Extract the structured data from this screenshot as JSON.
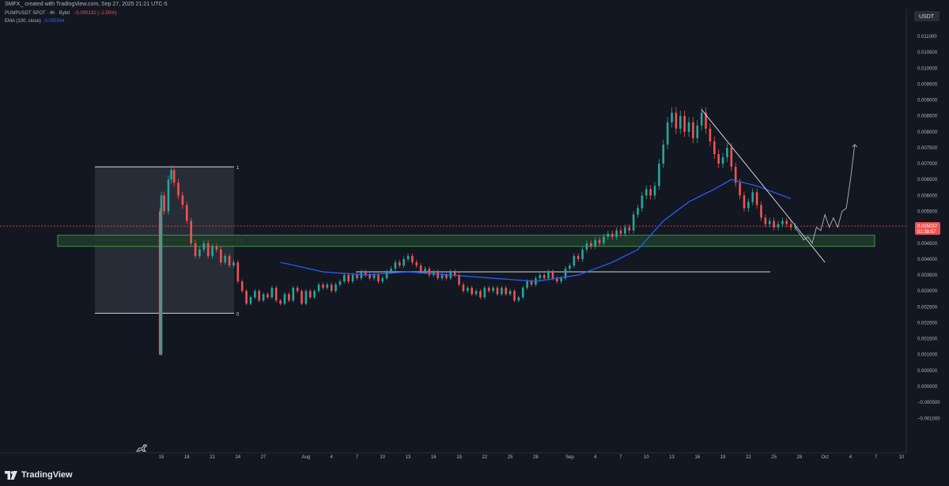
{
  "header": {
    "created_text": "SMFX_ created with TradingView.com, Sep 27, 2025 21:21 UTC-5",
    "symbol_text": "PUMPUSDT SPOT · 4h · Bybit",
    "change_text": "−0.000132 (−2.55%)",
    "ema_label": "EMA (100, close)",
    "ema_value": "0.005944"
  },
  "price_scale": {
    "currency": "USDT",
    "last_price": "0.005037",
    "countdown": "01:38:57"
  },
  "footer": {
    "brand": "TradingView"
  },
  "colors": {
    "up": "#26a69a",
    "down": "#ef5350",
    "ema": "#2962ff",
    "zone": "#1e3a2a",
    "background": "#131722"
  },
  "icons": {
    "logo": "tradingview-logo-icon",
    "dino": "dinosaur-icon"
  },
  "chart_data": {
    "type": "candlestick",
    "timeframe": "4h",
    "ylim": [
      -0.0011,
      0.0114
    ],
    "y_ticks": [
      "0.011000",
      "0.010500",
      "0.010000",
      "0.009500",
      "0.009000",
      "0.008500",
      "0.008000",
      "0.007500",
      "0.007000",
      "0.006500",
      "0.006000",
      "0.005500",
      "0.005000",
      "0.004500",
      "0.004000",
      "0.003500",
      "0.003000",
      "0.002500",
      "0.002000",
      "0.001500",
      "0.001000",
      "0.000500",
      "0.000000",
      "−0.000500",
      "−0.001000"
    ],
    "x_ticks": [
      "15",
      "18",
      "21",
      "24",
      "27",
      "Aug",
      "4",
      "7",
      "10",
      "13",
      "16",
      "19",
      "22",
      "25",
      "28",
      "Sep",
      "4",
      "7",
      "10",
      "13",
      "16",
      "19",
      "22",
      "25",
      "28",
      "Oct",
      "4",
      "7",
      "10"
    ],
    "x_tick_dates": [
      "2025-07-15",
      "2025-07-18",
      "2025-07-21",
      "2025-07-24",
      "2025-07-27",
      "2025-08-01",
      "2025-08-04",
      "2025-08-07",
      "2025-08-10",
      "2025-08-13",
      "2025-08-16",
      "2025-08-19",
      "2025-08-22",
      "2025-08-25",
      "2025-08-28",
      "2025-09-01",
      "2025-09-04",
      "2025-09-07",
      "2025-09-10",
      "2025-09-13",
      "2025-09-16",
      "2025-09-19",
      "2025-09-22",
      "2025-09-25",
      "2025-09-28",
      "2025-10-01",
      "2025-10-04",
      "2025-10-07",
      "2025-10-10"
    ],
    "price_path": [
      [
        "2025-07-14T12:00",
        0.0055
      ],
      [
        "2025-07-14T20:00",
        0.001
      ],
      [
        "2025-07-15T00:00",
        0.006
      ],
      [
        "2025-07-15T08:00",
        0.0055
      ],
      [
        "2025-07-15T20:00",
        0.0065
      ],
      [
        "2025-07-16T04:00",
        0.0068
      ],
      [
        "2025-07-16T12:00",
        0.0064
      ],
      [
        "2025-07-17T00:00",
        0.006
      ],
      [
        "2025-07-17T12:00",
        0.0057
      ],
      [
        "2025-07-18T00:00",
        0.0052
      ],
      [
        "2025-07-18T12:00",
        0.0045
      ],
      [
        "2025-07-19T00:00",
        0.0041
      ],
      [
        "2025-07-19T12:00",
        0.0043
      ],
      [
        "2025-07-20T00:00",
        0.0045
      ],
      [
        "2025-07-20T12:00",
        0.0041
      ],
      [
        "2025-07-21T00:00",
        0.0044
      ],
      [
        "2025-07-21T12:00",
        0.0043
      ],
      [
        "2025-07-22T00:00",
        0.0039
      ],
      [
        "2025-07-22T12:00",
        0.0041
      ],
      [
        "2025-07-23T00:00",
        0.0038
      ],
      [
        "2025-07-23T12:00",
        0.0039
      ],
      [
        "2025-07-24T00:00",
        0.0033
      ],
      [
        "2025-07-24T12:00",
        0.003
      ],
      [
        "2025-07-25T00:00",
        0.0026
      ],
      [
        "2025-07-25T12:00",
        0.0028
      ],
      [
        "2025-07-26T00:00",
        0.003
      ],
      [
        "2025-07-26T12:00",
        0.0027
      ],
      [
        "2025-07-27T00:00",
        0.0029
      ],
      [
        "2025-07-27T12:00",
        0.0028
      ],
      [
        "2025-07-28T00:00",
        0.0031
      ],
      [
        "2025-07-28T12:00",
        0.0027
      ],
      [
        "2025-07-29T00:00",
        0.0026
      ],
      [
        "2025-07-29T12:00",
        0.0029
      ],
      [
        "2025-07-30T00:00",
        0.0027
      ],
      [
        "2025-07-30T12:00",
        0.0031
      ],
      [
        "2025-07-31T00:00",
        0.003
      ],
      [
        "2025-07-31T12:00",
        0.0026
      ],
      [
        "2025-08-01T00:00",
        0.003
      ],
      [
        "2025-08-01T12:00",
        0.0028
      ],
      [
        "2025-08-02T00:00",
        0.003
      ],
      [
        "2025-08-02T12:00",
        0.0032
      ],
      [
        "2025-08-03T00:00",
        0.0031
      ],
      [
        "2025-08-03T12:00",
        0.0032
      ],
      [
        "2025-08-04T00:00",
        0.003
      ],
      [
        "2025-08-04T12:00",
        0.0032
      ],
      [
        "2025-08-05T00:00",
        0.0033
      ],
      [
        "2025-08-05T12:00",
        0.0035
      ],
      [
        "2025-08-06T00:00",
        0.0033
      ],
      [
        "2025-08-06T12:00",
        0.0035
      ],
      [
        "2025-08-07T00:00",
        0.0034
      ],
      [
        "2025-08-07T12:00",
        0.0036
      ],
      [
        "2025-08-08T00:00",
        0.0035
      ],
      [
        "2025-08-08T12:00",
        0.0034
      ],
      [
        "2025-08-09T00:00",
        0.0035
      ],
      [
        "2025-08-09T12:00",
        0.0033
      ],
      [
        "2025-08-10T00:00",
        0.0034
      ],
      [
        "2025-08-10T12:00",
        0.0036
      ],
      [
        "2025-08-11T00:00",
        0.0037
      ],
      [
        "2025-08-11T12:00",
        0.0039
      ],
      [
        "2025-08-12T00:00",
        0.0038
      ],
      [
        "2025-08-12T12:00",
        0.004
      ],
      [
        "2025-08-13T00:00",
        0.0041
      ],
      [
        "2025-08-13T12:00",
        0.0039
      ],
      [
        "2025-08-14T00:00",
        0.0038
      ],
      [
        "2025-08-14T12:00",
        0.0036
      ],
      [
        "2025-08-15T00:00",
        0.0037
      ],
      [
        "2025-08-15T12:00",
        0.0035
      ],
      [
        "2025-08-16T00:00",
        0.0036
      ],
      [
        "2025-08-16T12:00",
        0.0034
      ],
      [
        "2025-08-17T00:00",
        0.0035
      ],
      [
        "2025-08-17T12:00",
        0.0034
      ],
      [
        "2025-08-18T00:00",
        0.0036
      ],
      [
        "2025-08-18T12:00",
        0.0035
      ],
      [
        "2025-08-19T00:00",
        0.0032
      ],
      [
        "2025-08-19T12:00",
        0.003
      ],
      [
        "2025-08-20T00:00",
        0.0031
      ],
      [
        "2025-08-20T12:00",
        0.0029
      ],
      [
        "2025-08-21T00:00",
        0.003
      ],
      [
        "2025-08-21T12:00",
        0.0028
      ],
      [
        "2025-08-22T00:00",
        0.0031
      ],
      [
        "2025-08-22T12:00",
        0.003
      ],
      [
        "2025-08-23T00:00",
        0.0031
      ],
      [
        "2025-08-23T12:00",
        0.0029
      ],
      [
        "2025-08-24T00:00",
        0.0031
      ],
      [
        "2025-08-24T12:00",
        0.0029
      ],
      [
        "2025-08-25T00:00",
        0.003
      ],
      [
        "2025-08-25T12:00",
        0.0027
      ],
      [
        "2025-08-26T00:00",
        0.0028
      ],
      [
        "2025-08-26T12:00",
        0.0031
      ],
      [
        "2025-08-27T00:00",
        0.0033
      ],
      [
        "2025-08-27T12:00",
        0.0032
      ],
      [
        "2025-08-28T00:00",
        0.0034
      ],
      [
        "2025-08-28T12:00",
        0.0035
      ],
      [
        "2025-08-29T00:00",
        0.0034
      ],
      [
        "2025-08-29T12:00",
        0.0036
      ],
      [
        "2025-08-30T00:00",
        0.0034
      ],
      [
        "2025-08-30T12:00",
        0.0033
      ],
      [
        "2025-08-31T00:00",
        0.0034
      ],
      [
        "2025-08-31T12:00",
        0.0037
      ],
      [
        "2025-09-01T00:00",
        0.0038
      ],
      [
        "2025-09-01T12:00",
        0.0041
      ],
      [
        "2025-09-02T00:00",
        0.004
      ],
      [
        "2025-09-02T12:00",
        0.0043
      ],
      [
        "2025-09-03T00:00",
        0.0045
      ],
      [
        "2025-09-03T12:00",
        0.0044
      ],
      [
        "2025-09-04T00:00",
        0.0046
      ],
      [
        "2025-09-04T12:00",
        0.0045
      ],
      [
        "2025-09-05T00:00",
        0.0047
      ],
      [
        "2025-09-05T12:00",
        0.0048
      ],
      [
        "2025-09-06T00:00",
        0.0047
      ],
      [
        "2025-09-06T12:00",
        0.0049
      ],
      [
        "2025-09-07T00:00",
        0.0048
      ],
      [
        "2025-09-07T12:00",
        0.005
      ],
      [
        "2025-09-08T00:00",
        0.0049
      ],
      [
        "2025-09-08T12:00",
        0.0054
      ],
      [
        "2025-09-09T00:00",
        0.0056
      ],
      [
        "2025-09-09T12:00",
        0.006
      ],
      [
        "2025-09-10T00:00",
        0.0062
      ],
      [
        "2025-09-10T12:00",
        0.006
      ],
      [
        "2025-09-11T00:00",
        0.0063
      ],
      [
        "2025-09-11T12:00",
        0.007
      ],
      [
        "2025-09-12T00:00",
        0.0076
      ],
      [
        "2025-09-12T12:00",
        0.0083
      ],
      [
        "2025-09-13T00:00",
        0.0086
      ],
      [
        "2025-09-13T12:00",
        0.0081
      ],
      [
        "2025-09-14T00:00",
        0.0085
      ],
      [
        "2025-09-14T12:00",
        0.008
      ],
      [
        "2025-09-15T00:00",
        0.0083
      ],
      [
        "2025-09-15T12:00",
        0.0078
      ],
      [
        "2025-09-16T00:00",
        0.0082
      ],
      [
        "2025-09-16T12:00",
        0.0086
      ],
      [
        "2025-09-17T00:00",
        0.0081
      ],
      [
        "2025-09-17T12:00",
        0.0077
      ],
      [
        "2025-09-18T00:00",
        0.0073
      ],
      [
        "2025-09-18T12:00",
        0.007
      ],
      [
        "2025-09-19T00:00",
        0.0072
      ],
      [
        "2025-09-19T12:00",
        0.0075
      ],
      [
        "2025-09-20T00:00",
        0.0069
      ],
      [
        "2025-09-20T12:00",
        0.0064
      ],
      [
        "2025-09-21T00:00",
        0.006
      ],
      [
        "2025-09-21T12:00",
        0.0056
      ],
      [
        "2025-09-22T00:00",
        0.0058
      ],
      [
        "2025-09-22T12:00",
        0.0061
      ],
      [
        "2025-09-23T00:00",
        0.0057
      ],
      [
        "2025-09-23T12:00",
        0.0053
      ],
      [
        "2025-09-24T00:00",
        0.0051
      ],
      [
        "2025-09-24T12:00",
        0.0052
      ],
      [
        "2025-09-25T00:00",
        0.005
      ],
      [
        "2025-09-25T12:00",
        0.0051
      ],
      [
        "2025-09-26T00:00",
        0.0052
      ],
      [
        "2025-09-26T12:00",
        0.0051
      ],
      [
        "2025-09-27T00:00",
        0.005
      ],
      [
        "2025-09-27T12:00",
        0.00504
      ]
    ],
    "ema": {
      "name": "EMA (100, close)",
      "last_value": 0.005944,
      "path": [
        [
          "2025-07-29",
          0.0039
        ],
        [
          "2025-08-03",
          0.0036
        ],
        [
          "2025-08-08",
          0.0035
        ],
        [
          "2025-08-13",
          0.0036
        ],
        [
          "2025-08-18",
          0.0035
        ],
        [
          "2025-08-23",
          0.0034
        ],
        [
          "2025-08-28",
          0.0033
        ],
        [
          "2025-09-02",
          0.0035
        ],
        [
          "2025-09-06",
          0.0039
        ],
        [
          "2025-09-09",
          0.0043
        ],
        [
          "2025-09-12",
          0.0052
        ],
        [
          "2025-09-15",
          0.0058
        ],
        [
          "2025-09-18",
          0.0062
        ],
        [
          "2025-09-20",
          0.0065
        ],
        [
          "2025-09-23",
          0.0063
        ],
        [
          "2025-09-27",
          0.0059
        ]
      ]
    },
    "fib_box": {
      "start": "2025-07-12",
      "end": "2025-07-24",
      "high": 0.0069,
      "low": 0.0023,
      "levels": [
        {
          "label": "1",
          "value": 0.0069
        },
        {
          "label": "0.5",
          "value": 0.0046
        },
        {
          "label": "0",
          "value": 0.0023
        }
      ]
    },
    "support_zone": {
      "start": "2025-07-11",
      "end": "2025-10-09",
      "top": 0.00475,
      "bottom": 0.0044
    },
    "horizontal_line": {
      "start": "2025-08-02",
      "end": "2025-09-25",
      "value": 0.0036
    },
    "trendline": {
      "start": [
        "2025-09-16T12:00",
        0.0087
      ],
      "end": [
        "2025-10-01",
        0.0039
      ]
    },
    "projection_path": [
      [
        "2025-09-27T12:00",
        0.005
      ],
      [
        "2025-09-28T12:00",
        0.0046
      ],
      [
        "2025-09-29",
        0.0047
      ],
      [
        "2025-09-29T12:00",
        0.0045
      ],
      [
        "2025-09-30",
        0.005
      ],
      [
        "2025-09-30T12:00",
        0.0049
      ],
      [
        "2025-10-01",
        0.0054
      ],
      [
        "2025-10-01T12:00",
        0.005
      ],
      [
        "2025-10-02",
        0.0053
      ],
      [
        "2025-10-02T12:00",
        0.005
      ],
      [
        "2025-10-03",
        0.0055
      ],
      [
        "2025-10-03T12:00",
        0.0056
      ],
      [
        "2025-10-04",
        0.0065
      ],
      [
        "2025-10-04T12:00",
        0.0076
      ]
    ],
    "last_price_line": 0.005037,
    "grid": false
  }
}
